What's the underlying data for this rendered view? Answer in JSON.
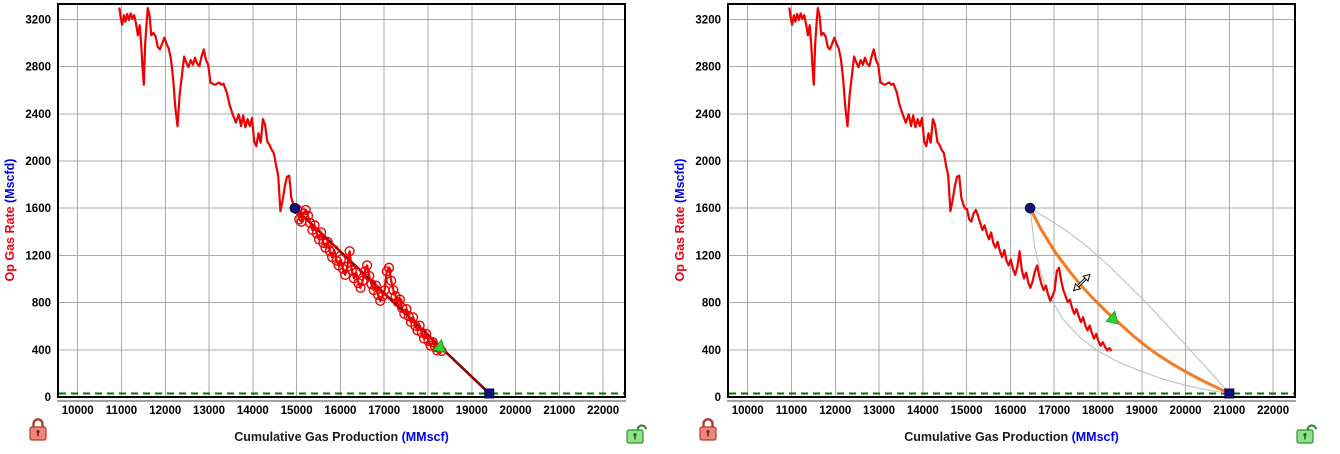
{
  "colors": {
    "history": "#ee0000",
    "fit_exponential": "#8b0000",
    "fit_hyperbolic": "#f5791e",
    "envelope": "#c0c0c0",
    "marker_blue": "#12127e",
    "marker_blue_edge": "#050545",
    "marker_green": "#2fd32f",
    "marker_green_edge": "#17a017",
    "abandonment_line": "#007500",
    "grid": "#a9a9a9",
    "plot_border": "#000000",
    "tick_text": "#000000",
    "x_title_text": "#1a1a1a",
    "unit_text": "#0000ee",
    "y_title_text": "#ee0011",
    "lock_closed_body": "#f0857c",
    "lock_closed_edge": "#a93c31",
    "lock_closed_keyhole": "#7c241c",
    "lock_open_body": "#90e08c",
    "lock_open_edge": "#2f8f2f",
    "lock_open_keyhole": "#1e6b1e",
    "cursor_fill": "#ffffff",
    "cursor_edge": "#000000"
  },
  "chart_data": {
    "type": "line",
    "title": "",
    "shared": {
      "x_axis": {
        "title": "Cumulative Gas Production",
        "unit": "(MMscf)",
        "min": 9550,
        "max": 22500,
        "ticks": [
          10000,
          11000,
          12000,
          13000,
          14000,
          15000,
          16000,
          17000,
          18000,
          19000,
          20000,
          21000,
          22000
        ]
      },
      "y_axis": {
        "title": "Op Gas Rate",
        "unit": "(Mscfd)",
        "min": 0,
        "max": 3330,
        "ticks": [
          0,
          400,
          800,
          1200,
          1600,
          2000,
          2400,
          2800,
          3200
        ]
      },
      "abandonment_rate": 30,
      "grid": true,
      "history_series_name": "Op Gas Rate history",
      "history_points": [
        [
          10950,
          3300
        ],
        [
          10985,
          3210
        ],
        [
          11015,
          3155
        ],
        [
          11055,
          3235
        ],
        [
          11090,
          3180
        ],
        [
          11130,
          3245
        ],
        [
          11170,
          3195
        ],
        [
          11210,
          3250
        ],
        [
          11250,
          3205
        ],
        [
          11290,
          3235
        ],
        [
          11335,
          3155
        ],
        [
          11375,
          3065
        ],
        [
          11415,
          3150
        ],
        [
          11450,
          2985
        ],
        [
          11480,
          2795
        ],
        [
          11510,
          2645
        ],
        [
          11540,
          2980
        ],
        [
          11570,
          3145
        ],
        [
          11600,
          3295
        ],
        [
          11640,
          3235
        ],
        [
          11680,
          3065
        ],
        [
          11730,
          3085
        ],
        [
          11780,
          3055
        ],
        [
          11830,
          2965
        ],
        [
          11880,
          2945
        ],
        [
          11930,
          2995
        ],
        [
          11980,
          3045
        ],
        [
          12030,
          2990
        ],
        [
          12080,
          2950
        ],
        [
          12130,
          2860
        ],
        [
          12180,
          2690
        ],
        [
          12230,
          2455
        ],
        [
          12280,
          2295
        ],
        [
          12330,
          2565
        ],
        [
          12380,
          2725
        ],
        [
          12430,
          2885
        ],
        [
          12480,
          2835
        ],
        [
          12530,
          2795
        ],
        [
          12580,
          2855
        ],
        [
          12630,
          2815
        ],
        [
          12680,
          2875
        ],
        [
          12730,
          2825
        ],
        [
          12780,
          2805
        ],
        [
          12830,
          2885
        ],
        [
          12880,
          2945
        ],
        [
          12930,
          2855
        ],
        [
          12980,
          2815
        ],
        [
          13030,
          2665
        ],
        [
          13080,
          2655
        ],
        [
          13130,
          2645
        ],
        [
          13180,
          2655
        ],
        [
          13230,
          2665
        ],
        [
          13280,
          2645
        ],
        [
          13330,
          2655
        ],
        [
          13400,
          2585
        ],
        [
          13470,
          2475
        ],
        [
          13540,
          2395
        ],
        [
          13610,
          2325
        ],
        [
          13680,
          2395
        ],
        [
          13730,
          2295
        ],
        [
          13780,
          2385
        ],
        [
          13830,
          2285
        ],
        [
          13880,
          2355
        ],
        [
          13930,
          2295
        ],
        [
          13980,
          2365
        ],
        [
          14030,
          2165
        ],
        [
          14080,
          2125
        ],
        [
          14130,
          2235
        ],
        [
          14180,
          2155
        ],
        [
          14230,
          2355
        ],
        [
          14280,
          2305
        ],
        [
          14330,
          2165
        ],
        [
          14380,
          2135
        ],
        [
          14430,
          2095
        ],
        [
          14480,
          2065
        ],
        [
          14530,
          1965
        ],
        [
          14580,
          1875
        ],
        [
          14630,
          1575
        ],
        [
          14680,
          1665
        ],
        [
          14730,
          1785
        ],
        [
          14780,
          1865
        ],
        [
          14830,
          1875
        ],
        [
          14880,
          1685
        ],
        [
          14930,
          1625
        ],
        [
          14960,
          1600
        ],
        [
          15010,
          1590
        ],
        [
          15060,
          1505
        ],
        [
          15110,
          1485
        ],
        [
          15160,
          1555
        ],
        [
          15210,
          1585
        ],
        [
          15260,
          1535
        ],
        [
          15310,
          1475
        ],
        [
          15360,
          1415
        ],
        [
          15410,
          1455
        ],
        [
          15460,
          1385
        ],
        [
          15510,
          1335
        ],
        [
          15560,
          1395
        ],
        [
          15610,
          1305
        ],
        [
          15660,
          1265
        ],
        [
          15710,
          1315
        ],
        [
          15760,
          1235
        ],
        [
          15810,
          1185
        ],
        [
          15860,
          1245
        ],
        [
          15910,
          1155
        ],
        [
          15960,
          1115
        ],
        [
          16010,
          1165
        ],
        [
          16060,
          1085
        ],
        [
          16110,
          1035
        ],
        [
          16160,
          1105
        ],
        [
          16210,
          1235
        ],
        [
          16260,
          1075
        ],
        [
          16310,
          1005
        ],
        [
          16360,
          1055
        ],
        [
          16410,
          965
        ],
        [
          16460,
          925
        ],
        [
          16510,
          985
        ],
        [
          16560,
          1065
        ],
        [
          16610,
          1115
        ],
        [
          16660,
          1025
        ],
        [
          16710,
          955
        ],
        [
          16760,
          905
        ],
        [
          16810,
          945
        ],
        [
          16860,
          865
        ],
        [
          16910,
          815
        ],
        [
          16960,
          855
        ],
        [
          17010,
          905
        ],
        [
          17060,
          1065
        ],
        [
          17110,
          1095
        ],
        [
          17160,
          985
        ],
        [
          17210,
          905
        ],
        [
          17260,
          855
        ],
        [
          17310,
          805
        ],
        [
          17360,
          825
        ],
        [
          17410,
          755
        ],
        [
          17460,
          705
        ],
        [
          17510,
          745
        ],
        [
          17560,
          685
        ],
        [
          17610,
          635
        ],
        [
          17660,
          675
        ],
        [
          17710,
          605
        ],
        [
          17760,
          565
        ],
        [
          17810,
          605
        ],
        [
          17860,
          545
        ],
        [
          17910,
          495
        ],
        [
          17960,
          535
        ],
        [
          18010,
          475
        ],
        [
          18060,
          435
        ],
        [
          18110,
          465
        ],
        [
          18160,
          425
        ],
        [
          18210,
          395
        ],
        [
          18260,
          415
        ],
        [
          18310,
          390
        ]
      ]
    },
    "charts": [
      {
        "name": "exponential-fit-panel",
        "fit": {
          "type": "exponential",
          "color_key": "fit_exponential",
          "width": 2.6,
          "points": [
            [
              14960,
              1600
            ],
            [
              19400,
              30
            ]
          ]
        },
        "scatter_from_cum": 15010,
        "markers": {
          "start": [
            14960,
            1600
          ],
          "triangle": [
            18280,
            430
          ],
          "end": [
            19400,
            30
          ]
        },
        "locks": {
          "bottom_left": "locked",
          "bottom_right": "unlocked"
        }
      },
      {
        "name": "hyperbolic-fit-panel",
        "fit": {
          "type": "hyperbolic",
          "color_key": "fit_hyperbolic",
          "width": 3,
          "points": [
            [
              16450,
              1600
            ],
            [
              16700,
              1420
            ],
            [
              17000,
              1240
            ],
            [
              17300,
              1090
            ],
            [
              17600,
              950
            ],
            [
              17900,
              830
            ],
            [
              18200,
              720
            ],
            [
              18500,
              620
            ],
            [
              18800,
              520
            ],
            [
              19100,
              430
            ],
            [
              19400,
              350
            ],
            [
              19700,
              280
            ],
            [
              20000,
              215
            ],
            [
              20300,
              155
            ],
            [
              20600,
              100
            ],
            [
              20800,
              65
            ],
            [
              21000,
              30
            ]
          ]
        },
        "envelope_upper": [
          [
            16450,
            1600
          ],
          [
            16900,
            1500
          ],
          [
            17350,
            1390
          ],
          [
            17800,
            1260
          ],
          [
            18250,
            1110
          ],
          [
            18700,
            950
          ],
          [
            19150,
            780
          ],
          [
            19600,
            600
          ],
          [
            20050,
            420
          ],
          [
            20500,
            240
          ],
          [
            21000,
            30
          ]
        ],
        "envelope_lower": [
          [
            16450,
            1600
          ],
          [
            16550,
            1280
          ],
          [
            16700,
            1040
          ],
          [
            16900,
            850
          ],
          [
            17200,
            660
          ],
          [
            17600,
            500
          ],
          [
            18000,
            390
          ],
          [
            18500,
            290
          ],
          [
            19000,
            215
          ],
          [
            19500,
            150
          ],
          [
            20000,
            100
          ],
          [
            20500,
            60
          ],
          [
            21000,
            30
          ]
        ],
        "markers": {
          "start": [
            16450,
            1600
          ],
          "triangle": [
            18350,
            672
          ],
          "end": [
            21000,
            30
          ]
        },
        "cursor": [
          17630,
          970
        ],
        "locks": {
          "bottom_left": "locked",
          "bottom_right": "unlocked"
        }
      }
    ]
  }
}
